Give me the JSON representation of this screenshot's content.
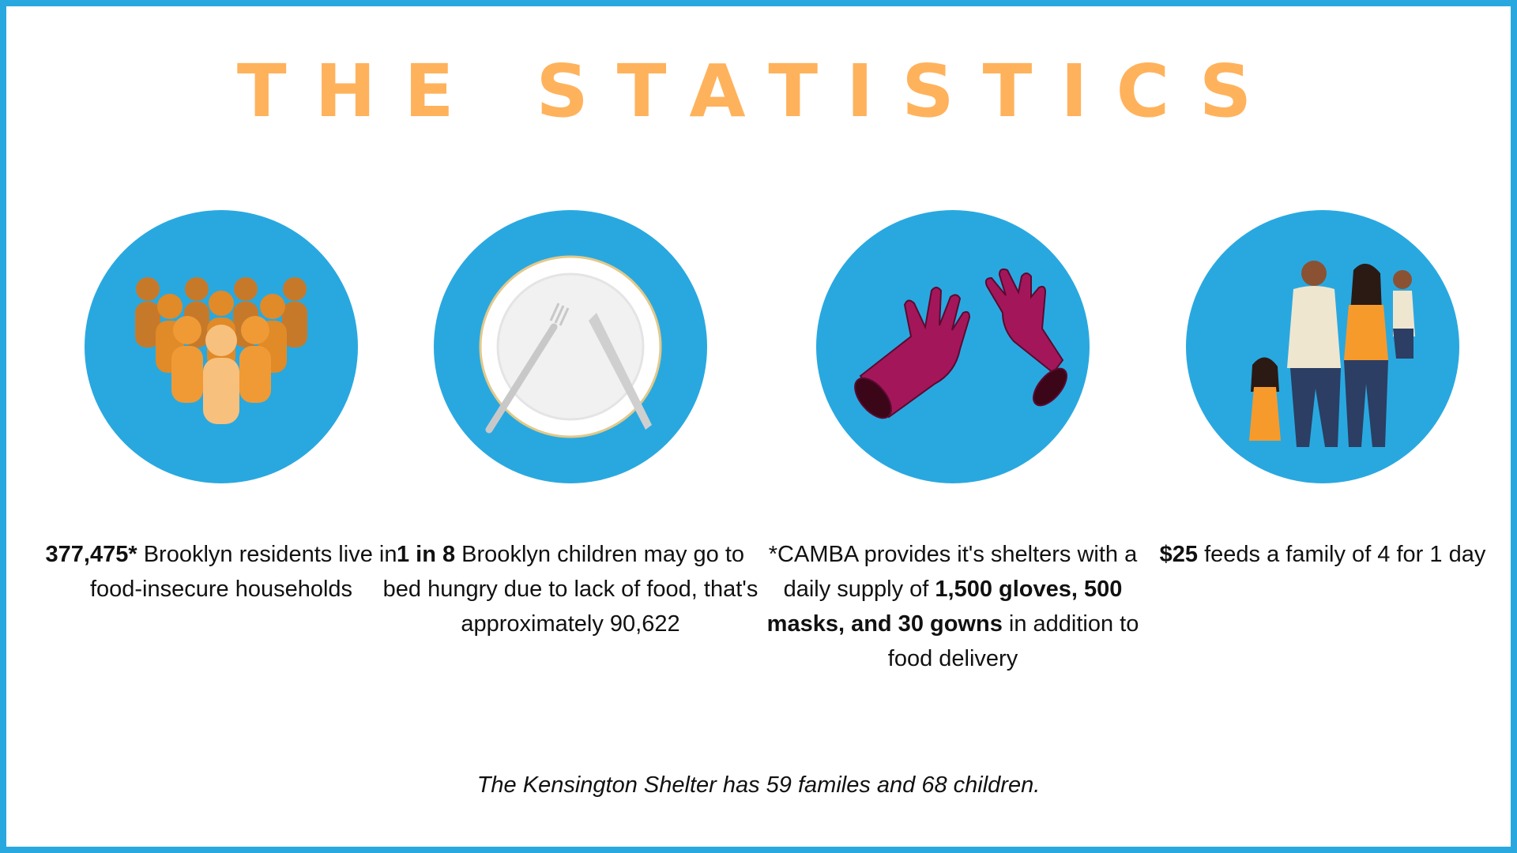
{
  "title": "THE STATISTICS",
  "colors": {
    "frame": "#29a8e0",
    "circle": "#29a8e0",
    "title": "#ffb25c"
  },
  "stats": [
    {
      "icon": "crowd-icon",
      "highlight": "377,475*",
      "text": " Brooklyn residents live in food-insecure households"
    },
    {
      "icon": "plate-icon",
      "highlight": "1 in 8",
      "text": " Brooklyn children may go to bed hungry due to lack of food, that's approximately 90,622"
    },
    {
      "icon": "gloves-icon",
      "prefix": "*CAMBA provides it's shelters with a daily supply of ",
      "highlight": "1,500 gloves, 500 masks, and 30 gowns",
      "suffix": " in addition to food delivery"
    },
    {
      "icon": "family-icon",
      "highlight": "$25",
      "text": " feeds a family of 4 for 1 day"
    }
  ],
  "footnote": "The Kensington Shelter has 59 familes and 68 children."
}
